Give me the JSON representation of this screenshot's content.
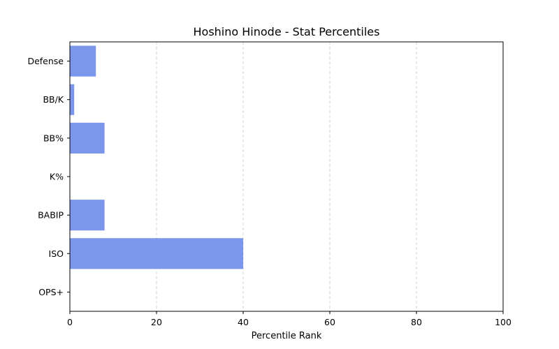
{
  "chart_data": {
    "type": "bar",
    "orientation": "horizontal",
    "title": "Hoshino Hinode - Stat Percentiles",
    "xlabel": "Percentile Rank",
    "ylabel": "",
    "categories": [
      "Defense",
      "BB/K",
      "BB%",
      "K%",
      "BABIP",
      "ISO",
      "OPS+"
    ],
    "values": [
      6,
      1,
      8,
      0,
      8,
      40,
      0
    ],
    "xlim": [
      0,
      100
    ],
    "xticks": [
      0,
      20,
      40,
      60,
      80,
      100
    ],
    "grid": "x-dashed",
    "bar_color": "#7b96ea"
  }
}
